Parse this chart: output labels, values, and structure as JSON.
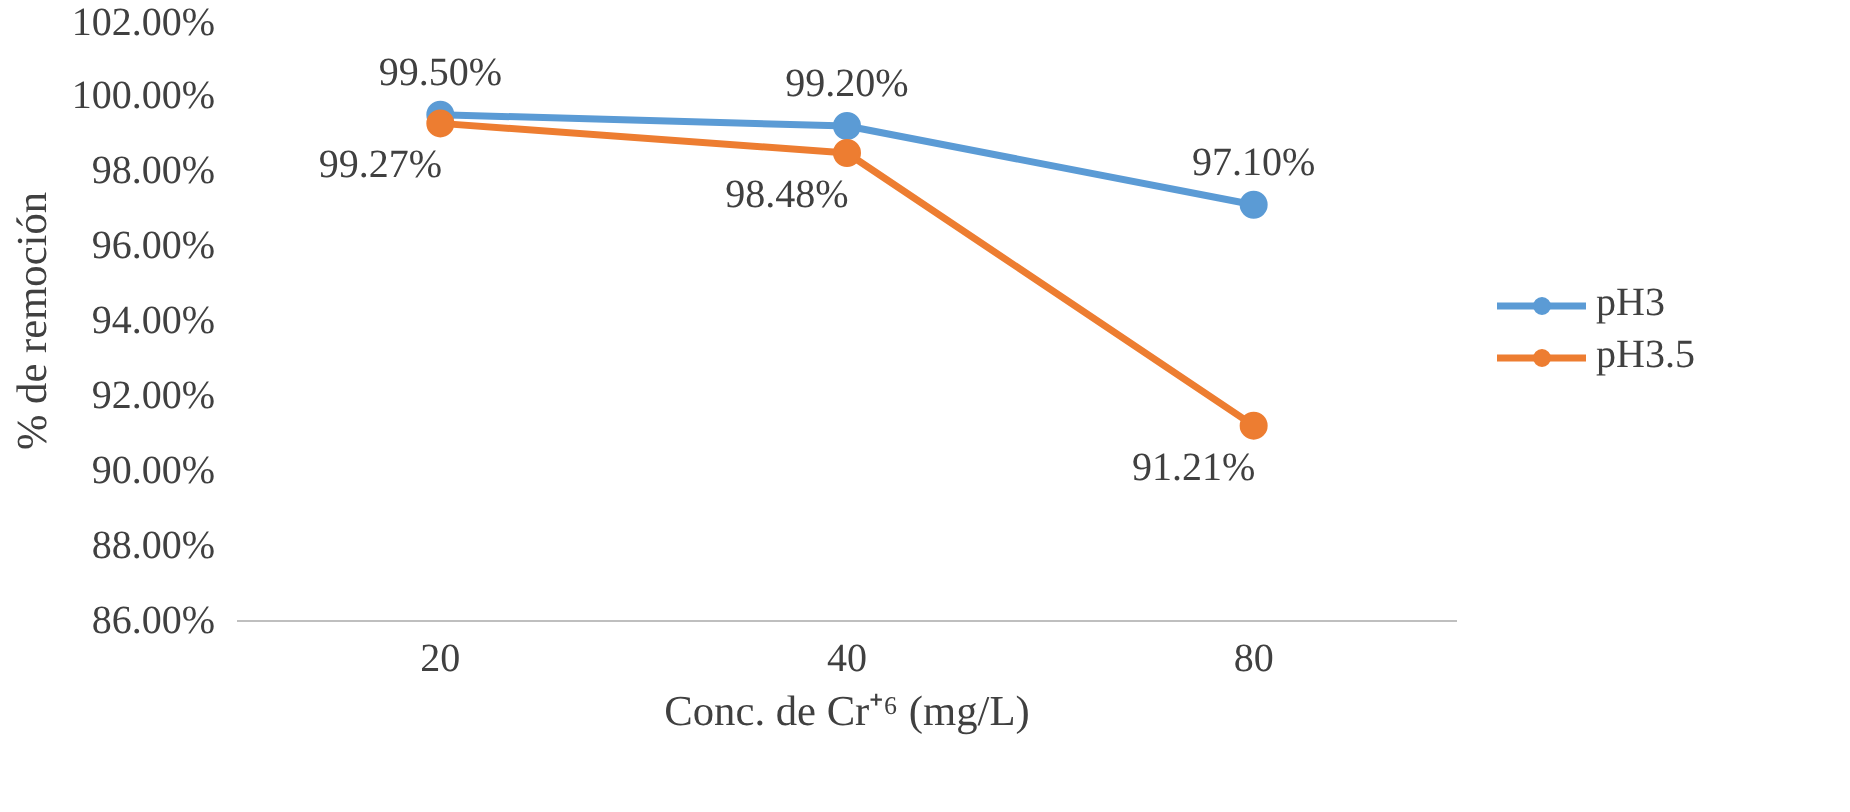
{
  "chart_data": {
    "type": "line",
    "xlabel": "Conc. de Cr⁺⁶ (mg/L)",
    "ylabel": "% de remoción",
    "categories": [
      "20",
      "40",
      "80"
    ],
    "series": [
      {
        "name": "pH3",
        "color": "#5b9bd5",
        "values": [
          99.5,
          99.2,
          97.1
        ],
        "value_labels": [
          "99.50%",
          "99.20%",
          "97.10%"
        ]
      },
      {
        "name": "pH3.5",
        "color": "#ed7d31",
        "values": [
          99.27,
          98.48,
          91.21
        ],
        "value_labels": [
          "99.27%",
          "98.48%",
          "91.21%"
        ]
      }
    ],
    "ylim": [
      86,
      102
    ],
    "yticks": [
      {
        "value": 86,
        "label": "86.00%"
      },
      {
        "value": 88,
        "label": "88.00%"
      },
      {
        "value": 90,
        "label": "90.00%"
      },
      {
        "value": 92,
        "label": "92.00%"
      },
      {
        "value": 94,
        "label": "94.00%"
      },
      {
        "value": 96,
        "label": "96.00%"
      },
      {
        "value": 98,
        "label": "98.00%"
      },
      {
        "value": 100,
        "label": "100.00%"
      },
      {
        "value": 102,
        "label": "102.00%"
      }
    ],
    "legend": "right",
    "marker": "circle",
    "line_style": "solid",
    "grid": false
  }
}
